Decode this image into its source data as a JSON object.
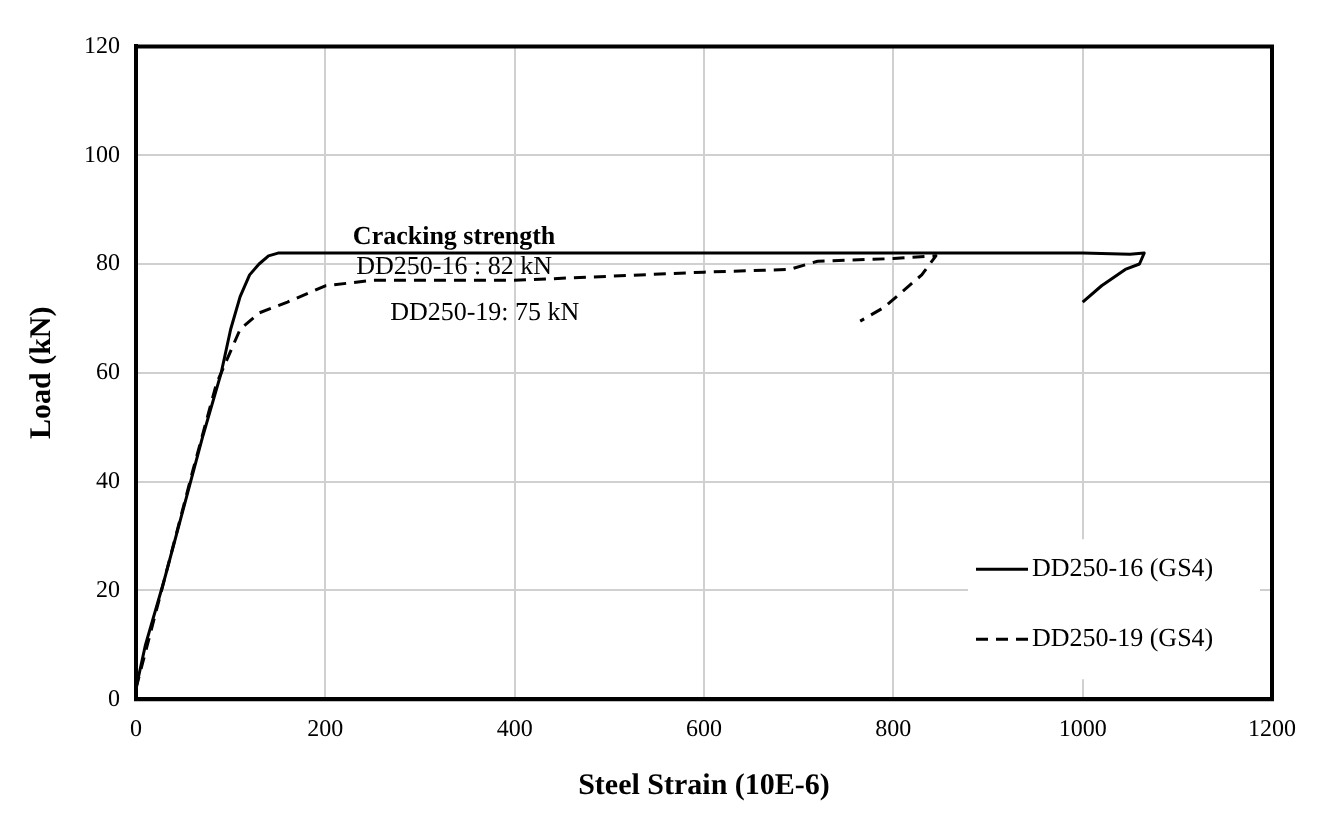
{
  "chart_data": {
    "type": "line",
    "xlabel": "Steel Strain (10E-6)",
    "ylabel": "Load (kN)",
    "xlim": [
      0,
      1200
    ],
    "xticks": [
      0,
      200,
      400,
      600,
      800,
      1000,
      1200
    ],
    "ylim": [
      0,
      120
    ],
    "yticks": [
      0,
      20,
      40,
      60,
      80,
      100,
      120
    ],
    "grid": true,
    "legend": "bottom right",
    "marker": "none",
    "series": [
      {
        "name": "DD250-16 (GS4)",
        "color": "#000000",
        "line_style": "solid",
        "x": [
          0,
          10,
          30,
          50,
          70,
          90,
          100,
          110,
          120,
          130,
          140,
          150,
          400,
          800,
          1000,
          1050,
          1065,
          1060,
          1045,
          1020,
          1000
        ],
        "values": [
          2,
          10,
          22,
          35,
          48,
          60,
          68,
          74,
          78,
          80,
          81.5,
          82,
          82,
          82,
          82,
          81.8,
          82,
          80,
          79,
          76,
          73
        ]
      },
      {
        "name": "DD250-19 (GS4)",
        "color": "#000000",
        "line_style": "dashed",
        "x": [
          0,
          30,
          60,
          85,
          95,
          110,
          130,
          160,
          200,
          250,
          400,
          600,
          690,
          720,
          800,
          845,
          830,
          810,
          790,
          765
        ],
        "values": [
          2,
          22,
          42,
          58,
          62,
          68,
          71,
          73,
          76,
          77,
          77,
          78.5,
          79,
          80.5,
          81,
          81.5,
          78,
          75,
          72,
          69.5
        ]
      }
    ],
    "annotations": [
      "Cracking strength",
      "DD250-16 : 82 kN",
      "DD250-19: 75 kN"
    ]
  }
}
